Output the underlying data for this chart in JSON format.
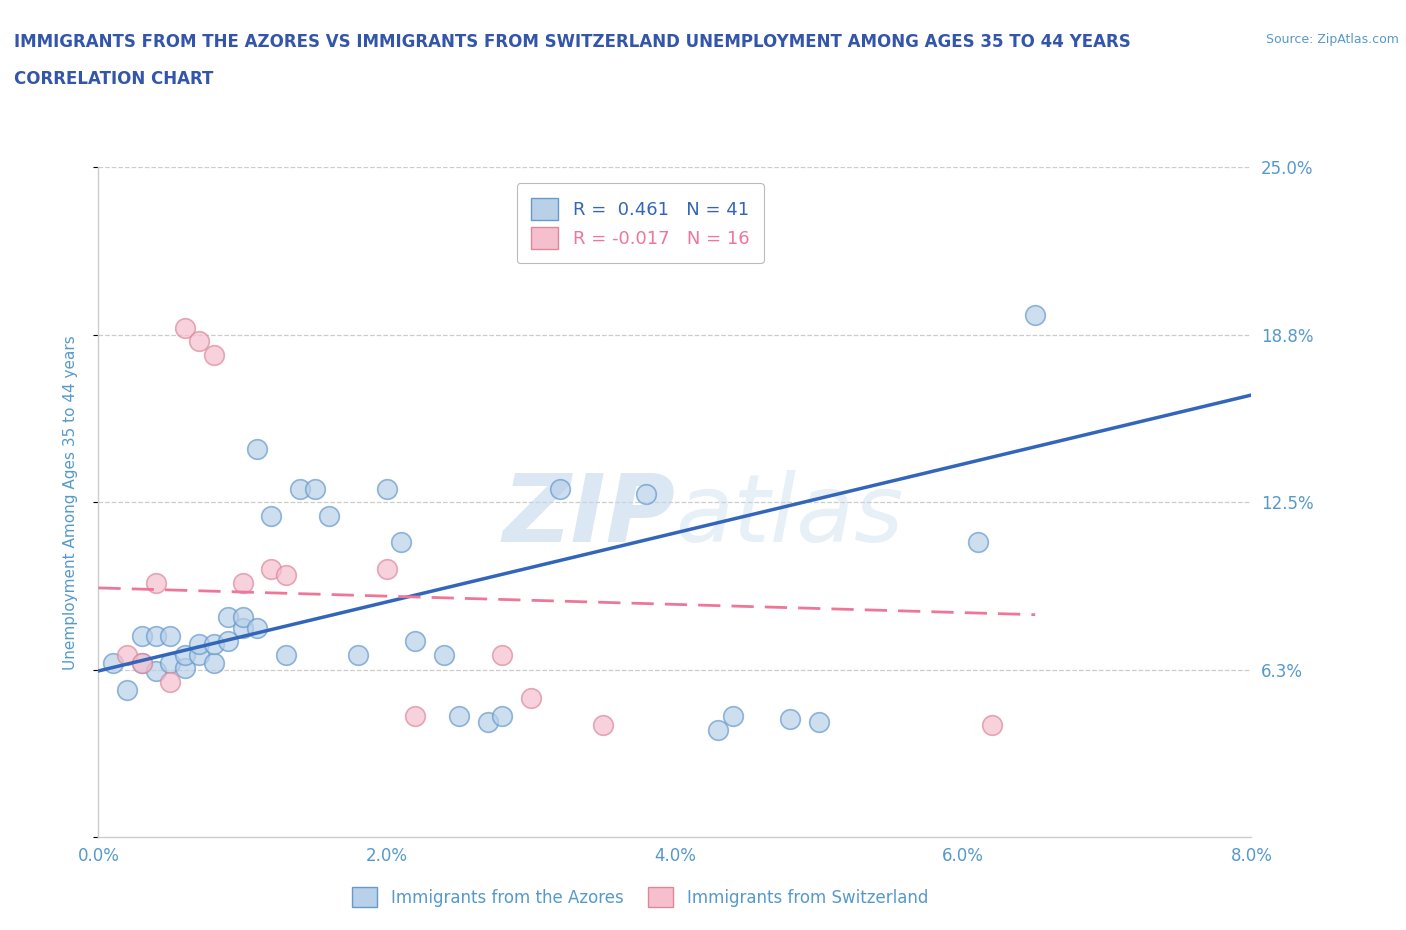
{
  "title_line1": "IMMIGRANTS FROM THE AZORES VS IMMIGRANTS FROM SWITZERLAND UNEMPLOYMENT AMONG AGES 35 TO 44 YEARS",
  "title_line2": "CORRELATION CHART",
  "source": "Source: ZipAtlas.com",
  "ylabel": "Unemployment Among Ages 35 to 44 years",
  "xlim": [
    0.0,
    0.08
  ],
  "ylim": [
    0.0,
    0.25
  ],
  "xticks": [
    0.0,
    0.02,
    0.04,
    0.06,
    0.08
  ],
  "xtick_labels": [
    "0.0%",
    "2.0%",
    "4.0%",
    "6.0%",
    "8.0%"
  ],
  "ytick_vals": [
    0.0,
    0.0625,
    0.125,
    0.1875,
    0.25
  ],
  "ytick_labels": [
    "",
    "6.3%",
    "12.5%",
    "18.8%",
    "25.0%"
  ],
  "legend_r_label1": "R =  0.461   N = 41",
  "legend_r_label2": "R = -0.017   N = 16",
  "legend_label_azores": "Immigrants from the Azores",
  "legend_label_swiss": "Immigrants from Switzerland",
  "azores_fill": "#b8d0e8",
  "azores_edge": "#6699cc",
  "swiss_fill": "#f5bfce",
  "swiss_edge": "#dd8899",
  "azores_line_color": "#3366bb",
  "swiss_line_color": "#ee7799",
  "grid_color": "#cccccc",
  "spine_color": "#cccccc",
  "tick_label_color": "#5599cc",
  "title_color": "#3355aa",
  "watermark_color": "#d0e4f0",
  "azores_x": [
    0.001,
    0.002,
    0.003,
    0.003,
    0.004,
    0.004,
    0.005,
    0.005,
    0.006,
    0.006,
    0.007,
    0.007,
    0.008,
    0.008,
    0.009,
    0.009,
    0.01,
    0.01,
    0.011,
    0.011,
    0.012,
    0.013,
    0.014,
    0.015,
    0.016,
    0.018,
    0.02,
    0.021,
    0.022,
    0.024,
    0.025,
    0.027,
    0.028,
    0.032,
    0.038,
    0.043,
    0.044,
    0.048,
    0.05,
    0.061,
    0.065
  ],
  "azores_y": [
    0.065,
    0.055,
    0.065,
    0.075,
    0.062,
    0.075,
    0.065,
    0.075,
    0.063,
    0.068,
    0.068,
    0.072,
    0.065,
    0.072,
    0.073,
    0.082,
    0.078,
    0.082,
    0.145,
    0.078,
    0.12,
    0.068,
    0.13,
    0.13,
    0.12,
    0.068,
    0.13,
    0.11,
    0.073,
    0.068,
    0.045,
    0.043,
    0.045,
    0.13,
    0.128,
    0.04,
    0.045,
    0.044,
    0.043,
    0.11,
    0.195
  ],
  "swiss_x": [
    0.002,
    0.003,
    0.004,
    0.005,
    0.006,
    0.007,
    0.008,
    0.01,
    0.012,
    0.013,
    0.02,
    0.022,
    0.028,
    0.03,
    0.035,
    0.062
  ],
  "swiss_y": [
    0.068,
    0.065,
    0.095,
    0.058,
    0.19,
    0.185,
    0.18,
    0.095,
    0.1,
    0.098,
    0.1,
    0.045,
    0.068,
    0.052,
    0.042,
    0.042
  ],
  "azores_trend": [
    0.0,
    0.08,
    0.062,
    0.165
  ],
  "swiss_trend": [
    0.0,
    0.065,
    0.093,
    0.083
  ]
}
